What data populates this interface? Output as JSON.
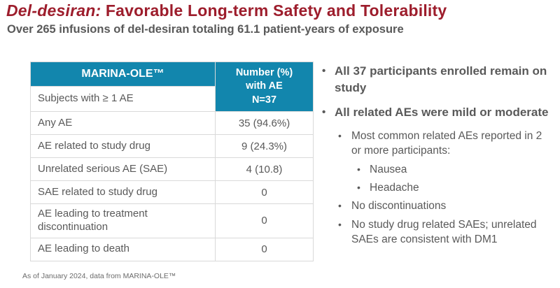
{
  "title": {
    "drug": "Del-desiran:",
    "rest": " Favorable Long-term Safety and Tolerability"
  },
  "subtitle": "Over 265 infusions of del-desiran totaling 61.1 patient-years of exposure",
  "colors": {
    "accent_teal": "#1286AD",
    "title_red": "#9D1D2C",
    "text_gray": "#595959",
    "border_gray": "#D9D9D9"
  },
  "table": {
    "study_header": "MARINA-OLE™",
    "value_header": "Number (%)\nwith AE\nN=37",
    "rows": [
      {
        "label": "Subjects with ≥ 1 AE",
        "value": ""
      },
      {
        "label": "Any AE",
        "value": "35 (94.6%)"
      },
      {
        "label": "AE related to study drug",
        "value": "9 (24.3%)"
      },
      {
        "label": "Unrelated serious AE (SAE)",
        "value": "4 (10.8)"
      },
      {
        "label": "SAE related to study drug",
        "value": "0"
      },
      {
        "label": "AE leading to treatment discontinuation",
        "value": "0"
      },
      {
        "label": "AE leading to death",
        "value": "0"
      }
    ]
  },
  "bullets": [
    {
      "text": "All 37 participants enrolled remain on study"
    },
    {
      "text": "All related AEs were mild or moderate"
    },
    {
      "text": "Most common related AEs reported in 2 or more participants:"
    },
    {
      "text": "Nausea"
    },
    {
      "text": "Headache"
    },
    {
      "text": "No discontinuations"
    },
    {
      "text": "No study drug related SAEs; unrelated SAEs are consistent with DM1"
    }
  ],
  "footer": "As of January 2024, data from MARINA-OLE™"
}
